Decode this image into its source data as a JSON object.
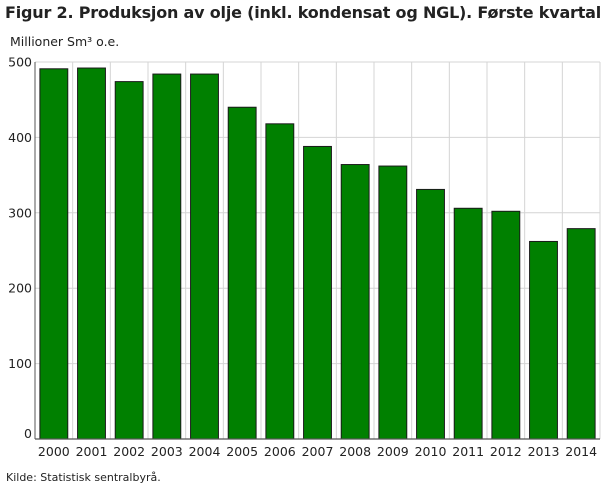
{
  "title": "Figur 2. Produksjon av olje (inkl. kondensat og NGL). Første kvartal",
  "source": "Kilde: Statistisk sentralbyrå.",
  "colors": {
    "bar": "#008000",
    "bar_stroke": "#1a1a1a",
    "grid": "#d4d4d4",
    "axis": "#555555"
  },
  "chart_data": {
    "type": "bar",
    "title": "Figur 2. Produksjon av olje (inkl. kondensat og NGL). Første kvartal",
    "ylabel": "Millioner Sm³ o.e.",
    "xlabel": "",
    "categories": [
      "2000",
      "2001",
      "2002",
      "2003",
      "2004",
      "2005",
      "2006",
      "2007",
      "2008",
      "2009",
      "2010",
      "2011",
      "2012",
      "2013",
      "2014"
    ],
    "values": [
      491,
      492,
      474,
      484,
      484,
      440,
      418,
      388,
      364,
      362,
      331,
      306,
      302,
      262,
      279
    ],
    "ylim": [
      0,
      500
    ],
    "yticks": [
      0,
      100,
      200,
      300,
      400,
      500
    ],
    "grid": true,
    "legend": "none"
  }
}
